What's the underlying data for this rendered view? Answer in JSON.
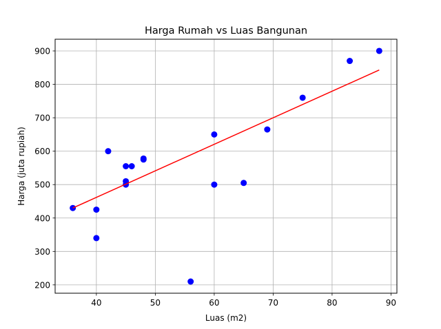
{
  "chart_data": {
    "type": "scatter",
    "title": "Harga Rumah vs Luas Bangunan",
    "xlabel": "Luas (m2)",
    "ylabel": "Harga (juta rupiah)",
    "xlim": [
      33,
      91
    ],
    "ylim": [
      175,
      935
    ],
    "xticks": [
      40,
      50,
      60,
      70,
      80,
      90
    ],
    "yticks": [
      200,
      300,
      400,
      500,
      600,
      700,
      800,
      900
    ],
    "grid": true,
    "series": [
      {
        "type": "scatter",
        "color": "#0000ff",
        "points": [
          {
            "x": 36,
            "y": 430
          },
          {
            "x": 40,
            "y": 425
          },
          {
            "x": 40,
            "y": 340
          },
          {
            "x": 42,
            "y": 600
          },
          {
            "x": 45,
            "y": 555
          },
          {
            "x": 45,
            "y": 510
          },
          {
            "x": 45,
            "y": 500
          },
          {
            "x": 46,
            "y": 555
          },
          {
            "x": 48,
            "y": 575
          },
          {
            "x": 48,
            "y": 578
          },
          {
            "x": 56,
            "y": 210
          },
          {
            "x": 60,
            "y": 650
          },
          {
            "x": 60,
            "y": 500
          },
          {
            "x": 65,
            "y": 505
          },
          {
            "x": 69,
            "y": 665
          },
          {
            "x": 75,
            "y": 760
          },
          {
            "x": 83,
            "y": 870
          },
          {
            "x": 88,
            "y": 900
          }
        ]
      },
      {
        "type": "line",
        "color": "#ff0000",
        "points": [
          {
            "x": 36,
            "y": 430
          },
          {
            "x": 88,
            "y": 843
          }
        ]
      }
    ]
  }
}
